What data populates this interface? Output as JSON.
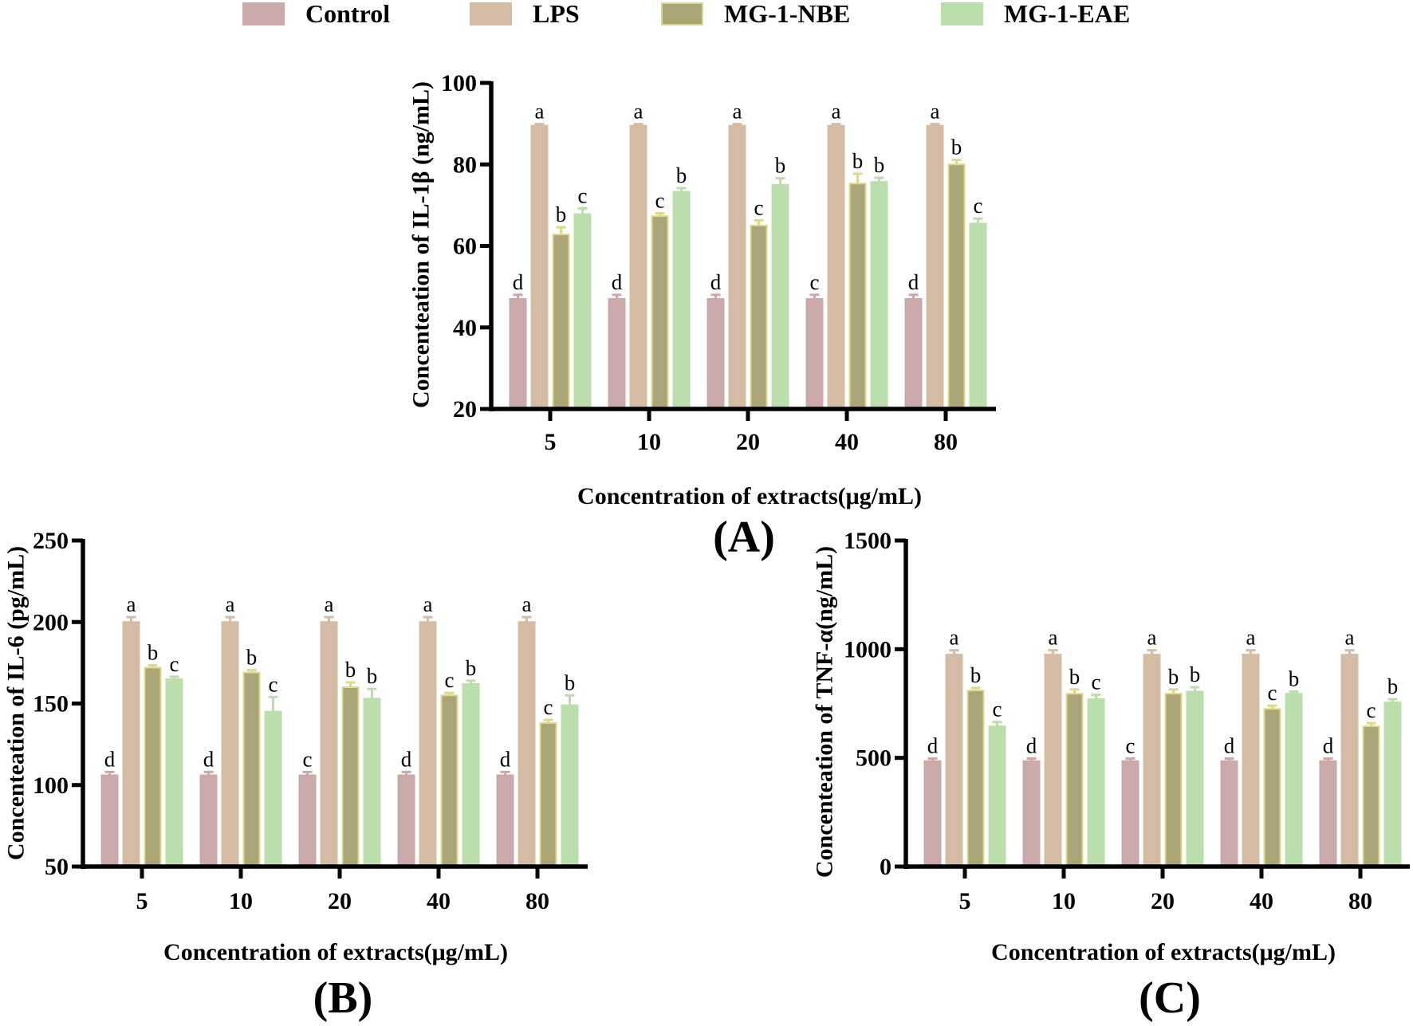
{
  "legend": [
    {
      "name": "Control",
      "color": "#cba9ab",
      "stroke": "#cba9ab"
    },
    {
      "name": "LPS",
      "color": "#d4bca5",
      "stroke": "#d4bca5"
    },
    {
      "name": "MG-1-NBE",
      "color": "#aba476",
      "stroke": "#dcd98c"
    },
    {
      "name": "MG-1-EAE",
      "color": "#bcdeac",
      "stroke": "#bcdeac"
    }
  ],
  "chart_data": [
    {
      "type": "bar",
      "panel_label": "(A)",
      "ylabel": "Concenteation of IL-1β (ng/mL)",
      "xlabel": "Concentration of extracts(μg/mL)",
      "categories": [
        "5",
        "10",
        "20",
        "40",
        "80"
      ],
      "ylim": [
        20,
        100
      ],
      "yticks": [
        "20",
        "40",
        "60",
        "80",
        "100"
      ],
      "series": [
        {
          "name": "Control",
          "values": [
            47,
            47,
            47,
            47,
            47
          ],
          "errors": [
            1,
            1,
            1,
            1,
            1
          ],
          "letters": [
            "d",
            "d",
            "d",
            "c",
            "d"
          ]
        },
        {
          "name": "LPS",
          "values": [
            89.5,
            89.5,
            89.5,
            89.5,
            89.5
          ],
          "errors": [
            0.4,
            0.4,
            0.4,
            0.4,
            0.4
          ],
          "letters": [
            "a",
            "a",
            "a",
            "a",
            "a"
          ]
        },
        {
          "name": "MG-1-NBE",
          "values": [
            62.8,
            67.3,
            65,
            75.3,
            80
          ],
          "errors": [
            1.8,
            0.7,
            1.3,
            2.4,
            1.1
          ],
          "letters": [
            "b",
            "c",
            "c",
            "b",
            "b"
          ]
        },
        {
          "name": "MG-1-EAE",
          "values": [
            67.8,
            73.3,
            75,
            75.7,
            65.5
          ],
          "errors": [
            1.4,
            0.9,
            1.6,
            1,
            1.2
          ],
          "letters": [
            "c",
            "b",
            "b",
            "b",
            "c"
          ]
        }
      ]
    },
    {
      "type": "bar",
      "panel_label": "(B)",
      "ylabel": "Concenteation of IL-6 (pg/mL)",
      "xlabel": "Concentration of extracts(μg/mL)",
      "categories": [
        "5",
        "10",
        "20",
        "40",
        "80"
      ],
      "ylim": [
        50,
        250
      ],
      "yticks": [
        "50",
        "100",
        "150",
        "200",
        "250"
      ],
      "series": [
        {
          "name": "Control",
          "values": [
            106,
            106,
            106,
            106,
            106
          ],
          "errors": [
            2,
            2,
            2,
            2,
            2
          ],
          "letters": [
            "d",
            "d",
            "c",
            "d",
            "d"
          ]
        },
        {
          "name": "LPS",
          "values": [
            200,
            200,
            200,
            200,
            200
          ],
          "errors": [
            3,
            3,
            3,
            3,
            3
          ],
          "letters": [
            "a",
            "a",
            "a",
            "a",
            "a"
          ]
        },
        {
          "name": "MG-1-NBE",
          "values": [
            172,
            169,
            160,
            155,
            138
          ],
          "errors": [
            1.5,
            1.5,
            3,
            1.5,
            2
          ],
          "letters": [
            "b",
            "b",
            "b",
            "c",
            "c"
          ]
        },
        {
          "name": "MG-1-EAE",
          "values": [
            165,
            145,
            153,
            162,
            149
          ],
          "errors": [
            1.5,
            9,
            6,
            2,
            6
          ],
          "letters": [
            "c",
            "c",
            "b",
            "b",
            "b"
          ]
        }
      ]
    },
    {
      "type": "bar",
      "panel_label": "(C)",
      "ylabel": "Concenteation of TNF-α(ng/mL)",
      "xlabel": "Concentration of extracts(μg/mL)",
      "categories": [
        "5",
        "10",
        "20",
        "40",
        "80"
      ],
      "ylim": [
        0,
        1500
      ],
      "yticks": [
        "0",
        "500",
        "1000",
        "1500"
      ],
      "series": [
        {
          "name": "Control",
          "values": [
            485,
            485,
            485,
            485,
            485
          ],
          "errors": [
            12,
            12,
            12,
            12,
            12
          ],
          "letters": [
            "d",
            "d",
            "c",
            "d",
            "d"
          ]
        },
        {
          "name": "LPS",
          "values": [
            975,
            975,
            975,
            975,
            975
          ],
          "errors": [
            20,
            20,
            20,
            20,
            20
          ],
          "letters": [
            "a",
            "a",
            "a",
            "a",
            "a"
          ]
        },
        {
          "name": "MG-1-NBE",
          "values": [
            810,
            795,
            795,
            725,
            645
          ],
          "errors": [
            12,
            20,
            20,
            15,
            15
          ],
          "letters": [
            "b",
            "b",
            "b",
            "c",
            "c"
          ]
        },
        {
          "name": "MG-1-EAE",
          "values": [
            645,
            770,
            805,
            795,
            755
          ],
          "errors": [
            20,
            20,
            20,
            10,
            15
          ],
          "letters": [
            "c",
            "c",
            "b",
            "b",
            "b"
          ]
        }
      ]
    }
  ]
}
